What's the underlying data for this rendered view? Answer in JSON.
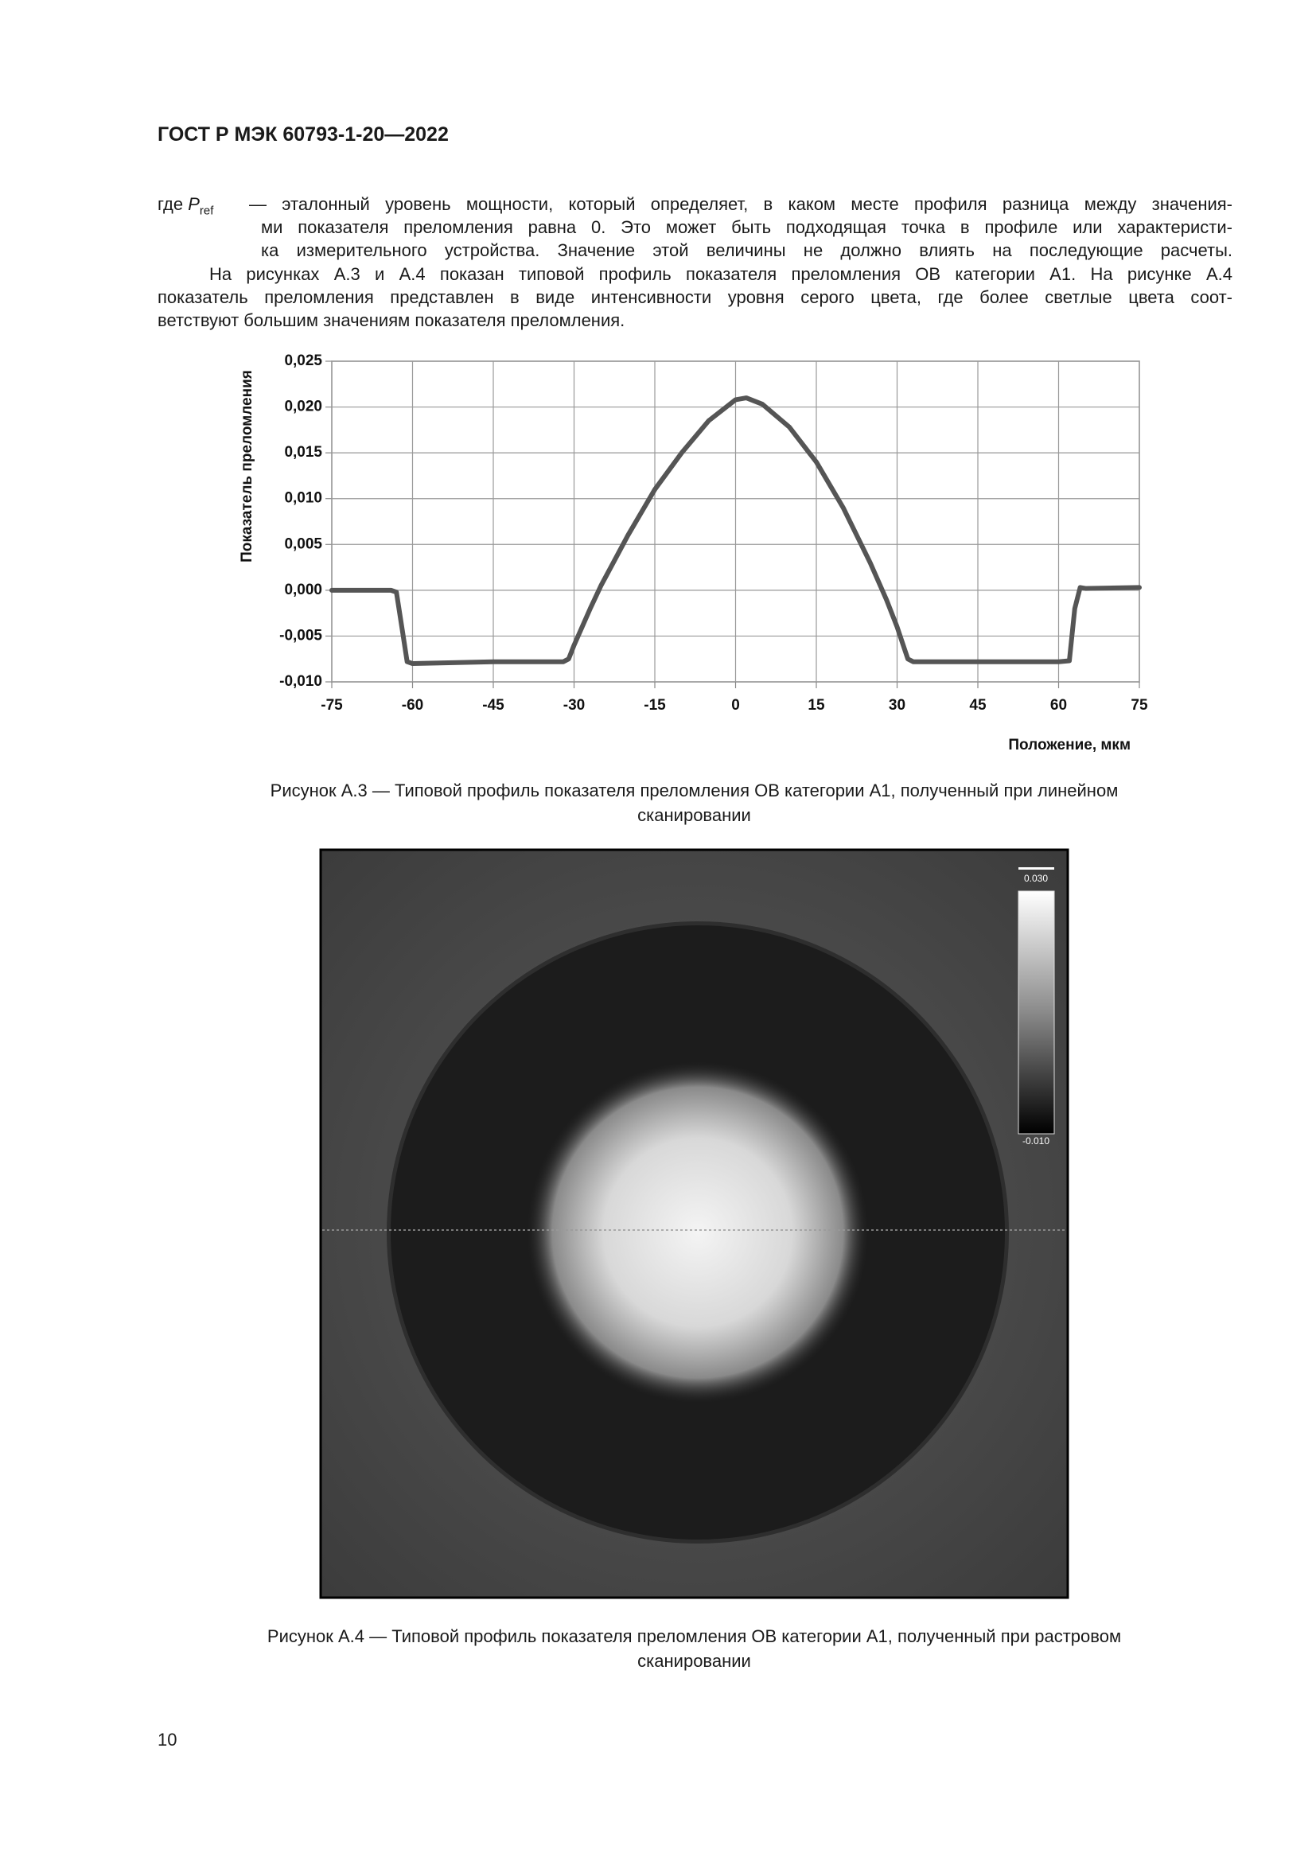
{
  "header": {
    "title": "ГОСТ Р МЭК 60793-1-20—2022"
  },
  "definition": {
    "term": "где",
    "symbol": "P",
    "subscript": "ref",
    "lines": [
      "— эталонный уровень мощности, который определяет, в каком месте профиля разница между значения-",
      "ми показателя преломления равна 0. Это может быть подходящая точка в профиле или характеристи-",
      "ка измерительного устройства. Значение этой величины не должно влиять на последующие расчеты."
    ]
  },
  "paragraph": {
    "lines": [
      "На рисунках А.3 и А.4 показан типовой профиль показателя преломления ОВ категории А1. На рисунке А.4",
      "показатель преломления представлен в виде интенсивности уровня серого цвета, где более светлые цвета соот-",
      "ветствуют большим значениям показателя преломления."
    ]
  },
  "chart_data": {
    "type": "line",
    "x_label": "Положение, мкм",
    "y_label": "Показатель преломления",
    "x": [
      -75,
      -70,
      -64,
      -63,
      -62,
      -61,
      -60,
      -45,
      -32,
      -31,
      -30,
      -27,
      -25,
      -20,
      -15,
      -10,
      -5,
      0,
      2,
      5,
      10,
      15,
      20,
      25,
      28,
      30,
      32,
      33,
      45,
      60,
      62,
      63,
      64,
      65,
      75
    ],
    "series": [
      {
        "color": "#555555",
        "values": [
          0,
          0,
          0,
          -0.0002,
          -0.004,
          -0.0078,
          -0.008,
          -0.0078,
          -0.0078,
          -0.0075,
          -0.006,
          -0.002,
          0.0005,
          0.006,
          0.011,
          0.015,
          0.0185,
          0.0208,
          0.021,
          0.0203,
          0.0178,
          0.014,
          0.009,
          0.003,
          -0.001,
          -0.004,
          -0.0075,
          -0.0078,
          -0.0078,
          -0.0078,
          -0.0077,
          -0.002,
          0.0003,
          0.0002,
          0.0003
        ]
      }
    ],
    "xlim": [
      -75,
      75
    ],
    "xticks": [
      -75,
      -60,
      -45,
      -30,
      -15,
      0,
      15,
      30,
      45,
      60,
      75
    ],
    "ylim": [
      -0.01,
      0.025
    ],
    "yticks": [
      {
        "value": -0.01,
        "label": "-0,010"
      },
      {
        "value": -0.005,
        "label": "-0,005"
      },
      {
        "value": 0,
        "label": "0,000"
      },
      {
        "value": 0.005,
        "label": "0,005"
      },
      {
        "value": 0.01,
        "label": "0,010"
      },
      {
        "value": 0.015,
        "label": "0,015"
      },
      {
        "value": 0.02,
        "label": "0,020"
      },
      {
        "value": 0.025,
        "label": "0,025"
      }
    ],
    "grid": true
  },
  "figure_a3": {
    "caption": [
      "Рисунок А.3 — Типовой профиль показателя преломления ОВ категории А1, полученный при линейном",
      "сканировании"
    ]
  },
  "figure_a4": {
    "colorbar_max": "0.030",
    "colorbar_min": "-0.010",
    "caption": [
      "Рисунок А.4 — Типовой профиль показателя преломления ОВ категории А1, полученный при растровом",
      "сканировании"
    ]
  },
  "footer": {
    "page_number": "10"
  }
}
